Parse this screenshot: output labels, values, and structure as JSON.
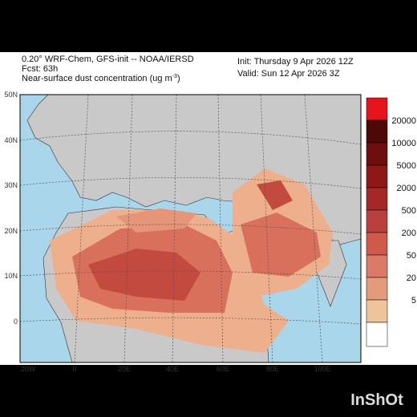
{
  "header": {
    "model": "0.20° WRF-Chem, GFS-init -- NOAA/IERSD",
    "forecast": "Fcst: 63h",
    "field": "Near-surface dust concentration (ug m",
    "field_superscript": "-3",
    "field_close": ")",
    "init": "Init: Thursday 9 Apr 2026  12Z",
    "valid": "Valid: Sun 12 Apr 2026  3Z"
  },
  "latitude_labels": [
    "50N",
    "40N",
    "30N",
    "20N",
    "10N",
    "0"
  ],
  "longitude_labels": [
    "20W",
    "0",
    "20E",
    "40E",
    "60E",
    "80E",
    "100E"
  ],
  "colorbar_labels": [
    "20000",
    "10000",
    "5000",
    "2000",
    "500",
    "200",
    "50",
    "20",
    "5"
  ],
  "watermark": "InShOt"
}
